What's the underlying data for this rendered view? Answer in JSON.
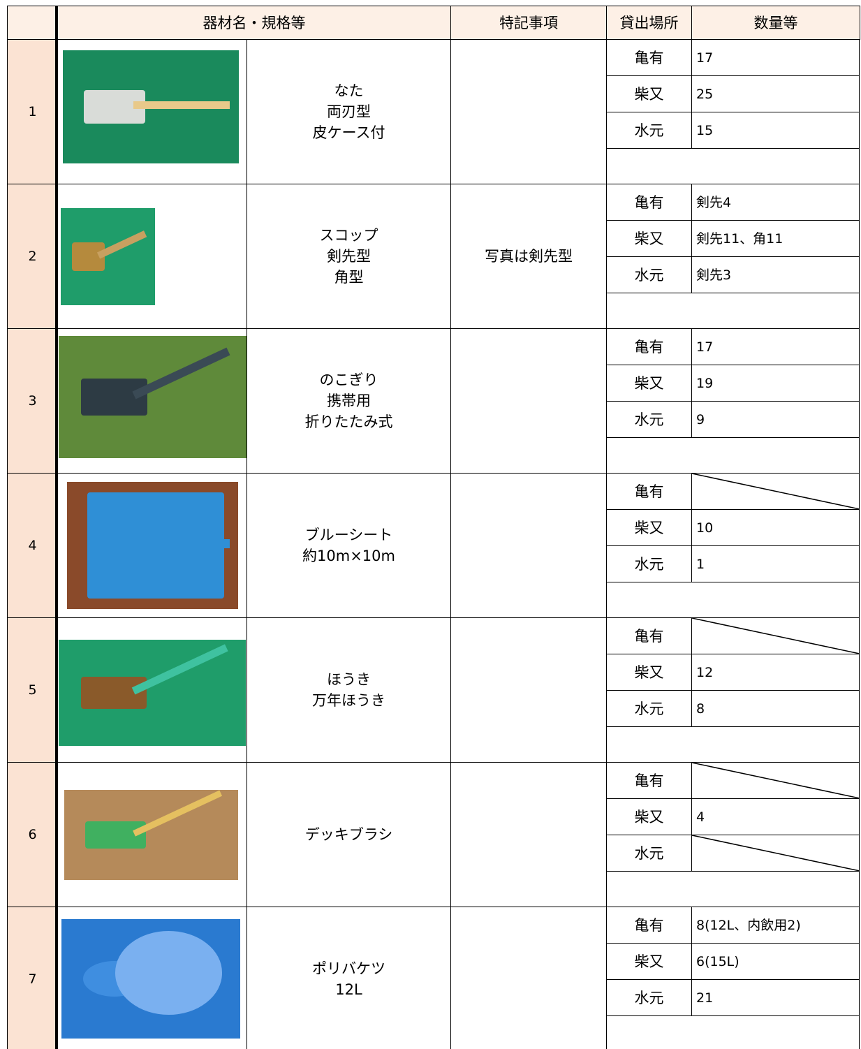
{
  "table": {
    "header": [
      "器材名・規格等",
      "特記事項",
      "貸出場所",
      "数量等"
    ],
    "rows": [
      {
        "no": "1",
        "name": [
          "なた",
          "両刃型",
          "皮ケース付"
        ],
        "note": null,
        "stock": [
          {
            "place": "亀有",
            "qty": "17"
          },
          {
            "place": "柴又",
            "qty": "25"
          },
          {
            "place": "水元",
            "qty": "15"
          }
        ]
      },
      {
        "no": "2",
        "name": [
          "スコップ",
          "剣先型",
          "角型"
        ],
        "note": "写真は剣先型",
        "stock": [
          {
            "place": "亀有",
            "qty": "剣先4"
          },
          {
            "place": "柴又",
            "qty": "剣先11、角11"
          },
          {
            "place": "水元",
            "qty": "剣先3"
          }
        ]
      },
      {
        "no": "3",
        "name": [
          "のこぎり",
          "携帯用",
          "折りたたみ式"
        ],
        "note": null,
        "stock": [
          {
            "place": "亀有",
            "qty": "17"
          },
          {
            "place": "柴又",
            "qty": "19"
          },
          {
            "place": "水元",
            "qty": "9"
          }
        ]
      },
      {
        "no": "4",
        "name": [
          "ブルーシート",
          "約10m×10m"
        ],
        "note": null,
        "stock": [
          {
            "place": "亀有",
            "qty": null
          },
          {
            "place": "柴又",
            "qty": "10"
          },
          {
            "place": "水元",
            "qty": "1"
          }
        ]
      },
      {
        "no": "5",
        "name": [
          "ほうき",
          "万年ほうき"
        ],
        "note": null,
        "stock": [
          {
            "place": "亀有",
            "qty": null
          },
          {
            "place": "柴又",
            "qty": "12"
          },
          {
            "place": "水元",
            "qty": "8"
          }
        ]
      },
      {
        "no": "6",
        "name": [
          "デッキブラシ"
        ],
        "note": null,
        "stock": [
          {
            "place": "亀有",
            "qty": null
          },
          {
            "place": "柴又",
            "qty": "4"
          },
          {
            "place": "水元",
            "qty": null
          }
        ]
      },
      {
        "no": "7",
        "name": [
          "ポリバケツ",
          "12L"
        ],
        "note": null,
        "stock": [
          {
            "place": "亀有",
            "qty": "8(12L、内飲用2)"
          },
          {
            "place": "柴又",
            "qty": "6(15L)"
          },
          {
            "place": "水元",
            "qty": "21"
          }
        ]
      }
    ]
  }
}
